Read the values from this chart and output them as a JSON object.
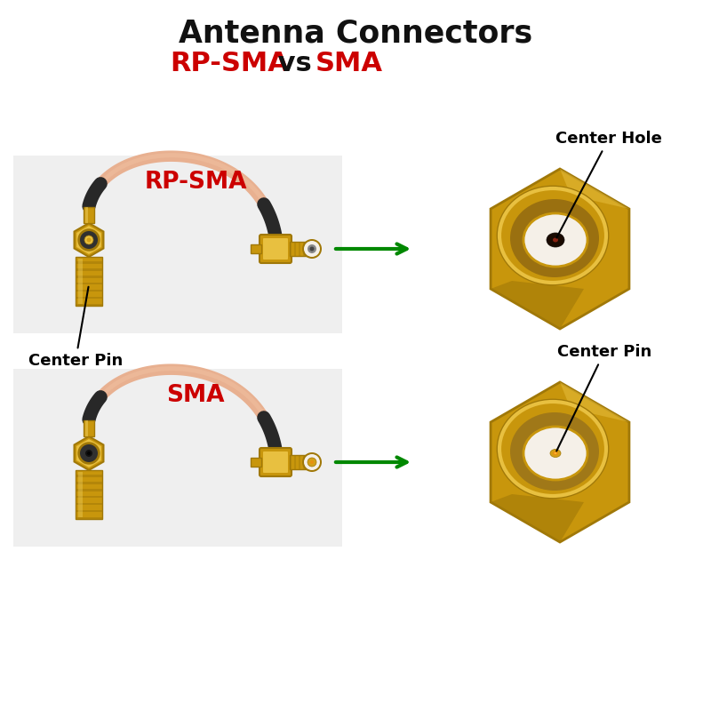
{
  "title_line1": "Antenna Connectors",
  "title_line2_rpsma": "RP-SMA",
  "title_line2_vs": " vs ",
  "title_line2_sma": "SMA",
  "title_color_accent": "#cc0000",
  "title_color_normal": "#111111",
  "background_color": "#ffffff",
  "label_rpsma": "RP-SMA",
  "label_sma": "SMA",
  "label_color": "#cc0000",
  "text_center_hole": "Center Hole",
  "text_center_pin_left": "Center Pin",
  "text_center_pin_right": "Center Pin",
  "arrow_color": "#008800",
  "annotation_color": "#000000",
  "gold1": "#D4A017",
  "gold2": "#C8960C",
  "gold3": "#E8C040",
  "gold4": "#A07808",
  "gold5": "#F0D060",
  "pink_cable": "#E8B090",
  "black_sleeve": "#282828",
  "panel_bg": "#EFEFEF",
  "white_diel": "#F5F0E8",
  "figsize": [
    8.0,
    8.0
  ],
  "dpi": 100
}
